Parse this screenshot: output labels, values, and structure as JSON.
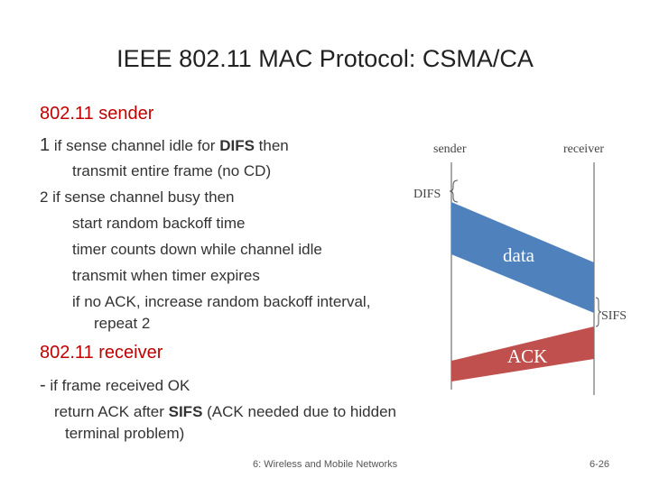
{
  "title": "IEEE 802.11 MAC Protocol: CSMA/CA",
  "sender_heading": "802.11 sender",
  "sender_step1": {
    "num": "1",
    "pre": " if sense channel idle for ",
    "bold": "DIFS",
    "post": "  then"
  },
  "sender_step1_sub": "transmit entire frame (no CD)",
  "sender_step2": "2 if sense channel busy then",
  "sender_step2_subs": [
    "start random backoff time",
    "timer counts down while channel idle",
    "transmit when timer expires",
    "if no ACK, increase random backoff interval,",
    "repeat 2"
  ],
  "receiver_heading": "802.11 receiver",
  "receiver_step": {
    "dash": "-",
    "text": " if frame received OK"
  },
  "receiver_sub1": {
    "pre": "return ACK after ",
    "bold": "SIFS",
    "post": " (ACK needed due to hidden"
  },
  "receiver_sub2": "terminal problem)",
  "diagram": {
    "sender_label": "sender",
    "receiver_label": "receiver",
    "difs_label": "DIFS",
    "data_label": "data",
    "sifs_label": "SIFS",
    "ack_label": "ACK",
    "colors": {
      "data": "#4f81bd",
      "ack": "#c0504d"
    }
  },
  "footer_center": "6: Wireless and Mobile Networks",
  "footer_right": "6-26"
}
